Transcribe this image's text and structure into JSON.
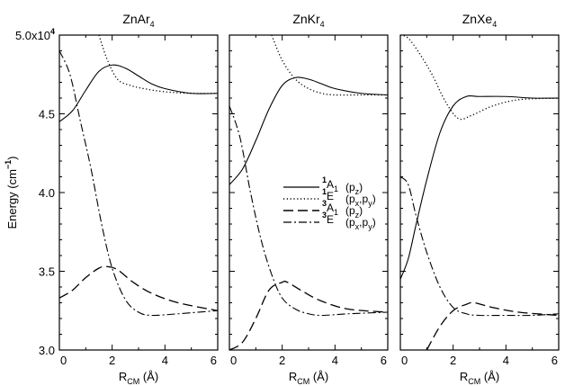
{
  "chart_data": {
    "type": "line",
    "ylabel": "Energy (cm⁻¹)",
    "ylim": [
      30000,
      50000
    ],
    "yticks": [
      {
        "value": 30000,
        "label": "3.0"
      },
      {
        "value": 35000,
        "label": "3.5"
      },
      {
        "value": 40000,
        "label": "4.0"
      },
      {
        "value": 45000,
        "label": "4.5"
      },
      {
        "value": 50000,
        "label": "5.0x10⁴"
      }
    ],
    "xlim": [
      0,
      6
    ],
    "xticks": [
      0,
      2,
      4,
      6
    ],
    "xlabel": "R_CM (Å)",
    "legend": {
      "placement": "center (middle panel)",
      "entries": [
        {
          "state": "¹A₁",
          "orbital": "(p_z)",
          "style": "solid"
        },
        {
          "state": "¹E",
          "orbital": "(p_x,p_y)",
          "style": "dotted"
        },
        {
          "state": "³A₁",
          "orbital": "(p_z)",
          "style": "dashed"
        },
        {
          "state": "³E",
          "orbital": "(p_x,p_y)",
          "style": "dashdot"
        }
      ]
    },
    "panels": [
      {
        "title": "ZnAr₄",
        "series": [
          {
            "style": "solid",
            "x": [
              0,
              0.5,
              1.0,
              1.5,
              2.0,
              2.5,
              3.0,
              3.5,
              4.0,
              5.0,
              6.0
            ],
            "y": [
              44500,
              45200,
              46500,
              47700,
              48100,
              47900,
              47400,
              46900,
              46600,
              46300,
              46300
            ]
          },
          {
            "style": "dotted",
            "x": [
              1.5,
              1.8,
              2.2,
              2.7,
              3.2,
              4.0,
              5.0,
              6.0
            ],
            "y": [
              50000,
              48500,
              47200,
              46800,
              46600,
              46400,
              46300,
              46300
            ]
          },
          {
            "style": "dashed",
            "x": [
              0,
              0.5,
              1.0,
              1.5,
              1.8,
              2.2,
              2.8,
              3.5,
              4.5,
              6.0
            ],
            "y": [
              33300,
              33800,
              34600,
              35200,
              35300,
              35100,
              34300,
              33600,
              33000,
              32500
            ]
          },
          {
            "style": "dashdot",
            "x": [
              0,
              0.4,
              0.8,
              1.2,
              1.6,
              2.0,
              2.5,
              3.0,
              3.5,
              4.5,
              6.0
            ],
            "y": [
              49000,
              47500,
              44500,
              41500,
              38000,
              35200,
              33200,
              32400,
              32200,
              32300,
              32500
            ]
          }
        ]
      },
      {
        "title": "ZnKr₄",
        "series": [
          {
            "style": "solid",
            "x": [
              0,
              0.5,
              1.0,
              1.5,
              2.0,
              2.5,
              3.0,
              3.5,
              4.0,
              5.0,
              6.0
            ],
            "y": [
              40500,
              41500,
              43300,
              45300,
              46800,
              47300,
              47200,
              46900,
              46600,
              46300,
              46200
            ]
          },
          {
            "style": "dotted",
            "x": [
              1.6,
              2.0,
              2.5,
              3.0,
              3.5,
              4.0,
              5.0,
              6.0
            ],
            "y": [
              50000,
              48400,
              47200,
              46600,
              46300,
              46200,
              46200,
              46200
            ]
          },
          {
            "style": "dashed",
            "x": [
              0,
              0.5,
              1.0,
              1.5,
              2.0,
              2.2,
              2.8,
              3.5,
              4.5,
              6.0
            ],
            "y": [
              30000,
              30500,
              32000,
              33800,
              34300,
              34300,
              33700,
              33100,
              32600,
              32400
            ]
          },
          {
            "style": "dashdot",
            "x": [
              0,
              0.4,
              0.8,
              1.2,
              1.6,
              2.0,
              2.5,
              3.0,
              3.5,
              4.5,
              6.0
            ],
            "y": [
              45500,
              43500,
              40000,
              37000,
              34800,
              33300,
              32600,
              32300,
              32200,
              32300,
              32400
            ]
          }
        ]
      },
      {
        "title": "ZnXe₄",
        "series": [
          {
            "style": "solid",
            "x": [
              0,
              0.3,
              0.6,
              1.0,
              1.5,
              2.0,
              2.5,
              3.0,
              4.0,
              5.0,
              6.0
            ],
            "y": [
              34500,
              35800,
              38000,
              40800,
              43800,
              45500,
              46100,
              46100,
              46100,
              46000,
              46000
            ]
          },
          {
            "style": "dotted",
            "x": [
              0,
              0.3,
              0.7,
              1.2,
              1.7,
              2.2,
              2.7,
              3.5,
              4.5,
              6.0
            ],
            "y": [
              50000,
              49800,
              48900,
              47500,
              45800,
              44700,
              44900,
              45500,
              45900,
              46000
            ]
          },
          {
            "style": "dashed",
            "x": [
              1.0,
              1.5,
              2.0,
              2.5,
              2.8,
              3.5,
              4.5,
              6.0
            ],
            "y": [
              30000,
              31500,
              32500,
              32900,
              33000,
              32700,
              32400,
              32200
            ]
          },
          {
            "style": "dashdot",
            "x": [
              0,
              0.3,
              0.6,
              1.0,
              1.5,
              2.0,
              2.5,
              3.0,
              4.0,
              5.0,
              6.0
            ],
            "y": [
              41000,
              40500,
              38500,
              36200,
              34000,
              32700,
              32300,
              32200,
              32200,
              32200,
              32300
            ]
          }
        ]
      }
    ]
  }
}
